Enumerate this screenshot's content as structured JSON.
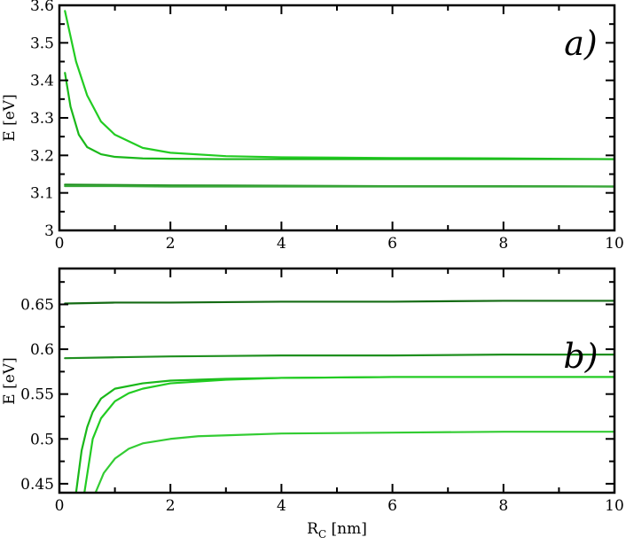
{
  "chart_data": [
    {
      "type": "line",
      "panel_label": "a)",
      "xlabel": "",
      "ylabel": "E [eV]",
      "xlim": [
        0,
        10
      ],
      "ylim": [
        3,
        3.6
      ],
      "xticks": [
        0,
        2,
        4,
        6,
        8,
        10
      ],
      "yticks": [
        3,
        3.1,
        3.2,
        3.3,
        3.4,
        3.5,
        3.6
      ],
      "ytick_labels": [
        "3",
        "3.1",
        "3.2",
        "3.3",
        "3.4",
        "3.5",
        "3.6"
      ],
      "series": [
        {
          "color": "#22cc22",
          "x": [
            0.1,
            0.3,
            0.5,
            0.75,
            1.0,
            1.5,
            2.0,
            3.0,
            4.0,
            6.0,
            8.0,
            10.0
          ],
          "y": [
            3.585,
            3.45,
            3.36,
            3.29,
            3.255,
            3.22,
            3.207,
            3.198,
            3.195,
            3.193,
            3.192,
            3.19
          ]
        },
        {
          "color": "#1ab81a",
          "x": [
            0.1,
            0.2,
            0.35,
            0.5,
            0.75,
            1.0,
            1.5,
            2.0,
            3.0,
            4.0,
            6.0,
            8.0,
            10.0
          ],
          "y": [
            3.42,
            3.33,
            3.255,
            3.222,
            3.203,
            3.196,
            3.192,
            3.191,
            3.19,
            3.19,
            3.19,
            3.19,
            3.19
          ]
        },
        {
          "color": "#1f8f1f",
          "x": [
            0.1,
            1.0,
            2.0,
            4.0,
            6.0,
            8.0,
            10.0
          ],
          "y": [
            3.122,
            3.121,
            3.12,
            3.119,
            3.118,
            3.118,
            3.117
          ]
        },
        {
          "color": "#3aa83a",
          "x": [
            0.1,
            1.0,
            2.0,
            4.0,
            6.0,
            8.0,
            10.0
          ],
          "y": [
            3.118,
            3.118,
            3.117,
            3.117,
            3.117,
            3.117,
            3.117
          ]
        }
      ]
    },
    {
      "type": "line",
      "panel_label": "b)",
      "xlabel": "R",
      "xlabel_sub": "C",
      "xlabel_unit": " [nm]",
      "ylabel": "E [eV]",
      "xlim": [
        0,
        10
      ],
      "ylim": [
        0.44,
        0.69
      ],
      "xticks": [
        0,
        2,
        4,
        6,
        8,
        10
      ],
      "yticks": [
        0.45,
        0.5,
        0.55,
        0.6,
        0.65
      ],
      "ytick_labels": [
        "0.45",
        "0.5",
        "0.55",
        "0.6",
        "0.65"
      ],
      "series": [
        {
          "color": "#146b14",
          "x": [
            0.1,
            1.0,
            2.0,
            4.0,
            6.0,
            8.0,
            10.0
          ],
          "y": [
            0.651,
            0.652,
            0.652,
            0.653,
            0.653,
            0.654,
            0.654
          ]
        },
        {
          "color": "#1f8f1f",
          "x": [
            0.1,
            1.0,
            2.0,
            4.0,
            6.0,
            8.0,
            10.0
          ],
          "y": [
            0.59,
            0.591,
            0.592,
            0.593,
            0.593,
            0.594,
            0.594
          ]
        },
        {
          "color": "#1ab81a",
          "x": [
            0.3,
            0.4,
            0.5,
            0.6,
            0.75,
            1.0,
            1.5,
            2.0,
            3.0,
            4.0,
            6.0,
            8.0,
            10.0
          ],
          "y": [
            0.44,
            0.487,
            0.513,
            0.53,
            0.545,
            0.556,
            0.562,
            0.565,
            0.567,
            0.568,
            0.569,
            0.569,
            0.569
          ]
        },
        {
          "color": "#22cc22",
          "x": [
            0.45,
            0.6,
            0.75,
            1.0,
            1.25,
            1.5,
            2.0,
            3.0,
            4.0,
            6.0,
            8.0,
            10.0
          ],
          "y": [
            0.44,
            0.5,
            0.523,
            0.542,
            0.551,
            0.556,
            0.562,
            0.566,
            0.568,
            0.569,
            0.569,
            0.569
          ]
        },
        {
          "color": "#33cc33",
          "x": [
            0.65,
            0.8,
            1.0,
            1.25,
            1.5,
            2.0,
            2.5,
            3.0,
            4.0,
            6.0,
            8.0,
            10.0
          ],
          "y": [
            0.44,
            0.462,
            0.478,
            0.489,
            0.495,
            0.5,
            0.503,
            0.504,
            0.506,
            0.507,
            0.508,
            0.508
          ]
        }
      ]
    }
  ]
}
